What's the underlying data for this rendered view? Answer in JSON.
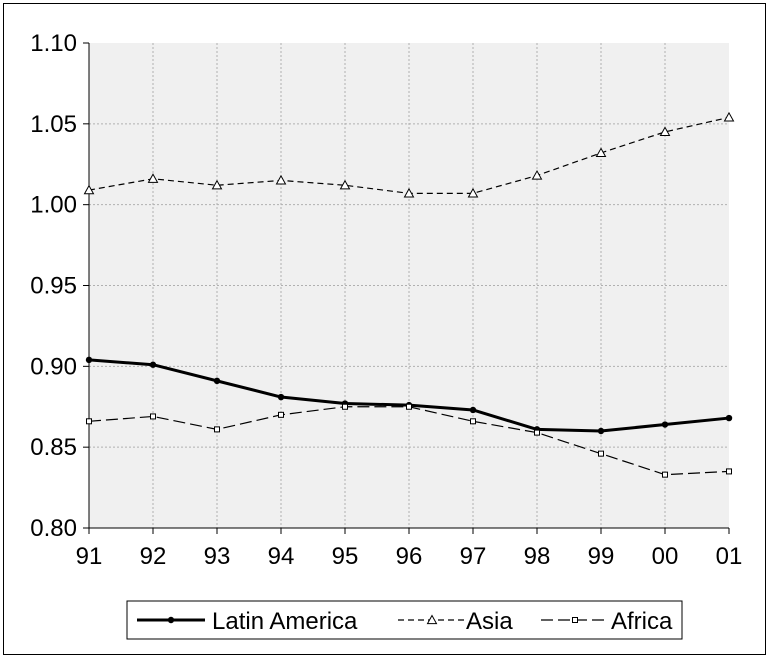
{
  "chart_data": {
    "type": "line",
    "title": "",
    "xlabel": "",
    "ylabel": "",
    "x": [
      "91",
      "92",
      "93",
      "94",
      "95",
      "96",
      "97",
      "98",
      "99",
      "00",
      "01"
    ],
    "ylim": [
      0.8,
      1.1
    ],
    "y_ticks": [
      "0.80",
      "0.85",
      "0.90",
      "0.95",
      "1.00",
      "1.05",
      "1.10"
    ],
    "grid": true,
    "legend_position": "bottom",
    "background": "#f0f0f0",
    "series": [
      {
        "name": "Latin America",
        "style": "solid",
        "marker": "dot",
        "color": "#000000",
        "values": [
          0.904,
          0.901,
          0.891,
          0.881,
          0.877,
          0.876,
          0.873,
          0.861,
          0.86,
          0.864,
          0.868
        ]
      },
      {
        "name": "Asia",
        "style": "dashed",
        "marker": "triangle",
        "color": "#000000",
        "values": [
          1.009,
          1.016,
          1.012,
          1.015,
          1.012,
          1.007,
          1.007,
          1.018,
          1.032,
          1.045,
          1.054
        ]
      },
      {
        "name": "Africa",
        "style": "longdash",
        "marker": "square",
        "color": "#000000",
        "values": [
          0.866,
          0.869,
          0.861,
          0.87,
          0.875,
          0.875,
          0.866,
          0.859,
          0.846,
          0.833,
          0.835
        ]
      }
    ]
  }
}
